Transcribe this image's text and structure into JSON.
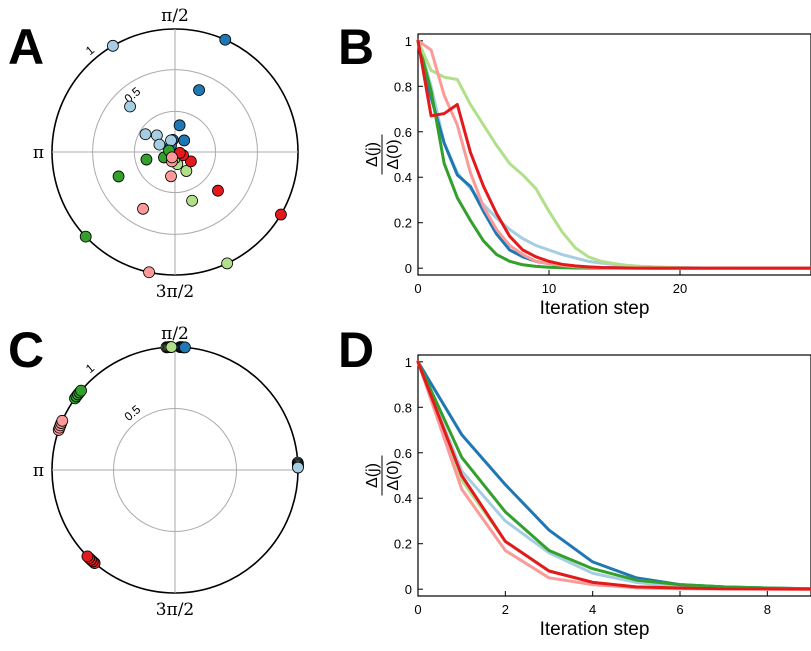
{
  "chart_data": [
    {
      "panel": "A",
      "type": "scatter",
      "subtype": "polar",
      "angle_labels": {
        "top": "π/2",
        "left": "π",
        "bottom": "3π/2"
      },
      "radial_labels": [
        "1",
        "0.5"
      ],
      "radial_circles": [
        0.33,
        0.67,
        1.0
      ],
      "series": [
        {
          "color": "#1f78b4",
          "points": [
            [
              1.15,
              1.0
            ],
            [
              1.2,
              0.54
            ],
            [
              1.4,
              0.22
            ],
            [
              1.75,
              0.1
            ],
            [
              2.15,
              0.06
            ],
            [
              0.9,
              0.12
            ]
          ]
        },
        {
          "color": "#a6cee3",
          "points": [
            [
              2.1,
              1.0
            ],
            [
              2.35,
              0.52
            ],
            [
              2.6,
              0.28
            ],
            [
              2.4,
              0.2
            ],
            [
              1.9,
              0.1
            ],
            [
              2.7,
              0.14
            ]
          ]
        },
        {
          "color": "#33a02c",
          "points": [
            [
              3.9,
              1.0
            ],
            [
              3.55,
              0.5
            ],
            [
              3.4,
              0.24
            ],
            [
              3.6,
              0.1
            ],
            [
              2.9,
              0.05
            ]
          ]
        },
        {
          "color": "#b2df8a",
          "points": [
            [
              5.15,
              1.0
            ],
            [
              5.05,
              0.42
            ],
            [
              5.25,
              0.18
            ],
            [
              4.9,
              0.1
            ],
            [
              4.7,
              0.05
            ]
          ]
        },
        {
          "color": "#e31a1c",
          "points": [
            [
              5.75,
              1.0
            ],
            [
              5.55,
              0.47
            ],
            [
              5.75,
              0.15
            ],
            [
              5.9,
              0.07
            ],
            [
              6.1,
              0.04
            ]
          ]
        },
        {
          "color": "#fb9a99",
          "points": [
            [
              4.5,
              1.0
            ],
            [
              4.2,
              0.53
            ],
            [
              4.55,
              0.2
            ],
            [
              4.4,
              0.08
            ],
            [
              4.2,
              0.05
            ]
          ]
        }
      ]
    },
    {
      "panel": "B",
      "type": "line",
      "xlabel": "Iteration step",
      "ylabel_num": "Δ(j)",
      "ylabel_den": "Δ(0)",
      "xlim": [
        0,
        30
      ],
      "ylim": [
        -0.03,
        1.03
      ],
      "xticks": [
        0,
        10,
        20
      ],
      "yticks": [
        0,
        0.2,
        0.4,
        0.6,
        0.8,
        1
      ],
      "ytick_labels": [
        "0",
        "0.2",
        "0.4",
        "0.6",
        "0.8",
        "1"
      ],
      "series": [
        {
          "color": "#a6cee3",
          "x": [
            0,
            1,
            2,
            3,
            4,
            5,
            6,
            7,
            8,
            9,
            10,
            11,
            12,
            13,
            14,
            15,
            16,
            17,
            18,
            19,
            20,
            21,
            22,
            23,
            24,
            25,
            26,
            27,
            28,
            29,
            30
          ],
          "y": [
            1,
            0.8,
            0.55,
            0.42,
            0.35,
            0.28,
            0.22,
            0.17,
            0.13,
            0.1,
            0.08,
            0.06,
            0.045,
            0.03,
            0.022,
            0.016,
            0.012,
            0.008,
            0.006,
            0.004,
            0.003,
            0.002,
            0.001,
            0.001,
            0.001,
            0,
            0,
            0,
            0,
            0,
            0
          ]
        },
        {
          "color": "#1f78b4",
          "x": [
            0,
            1,
            2,
            3,
            4,
            5,
            6,
            7,
            8,
            9,
            10,
            11,
            12,
            13,
            14,
            15,
            16,
            17,
            18,
            19,
            20,
            21,
            22,
            23,
            24,
            25,
            26,
            27,
            28,
            29,
            30
          ],
          "y": [
            1,
            0.75,
            0.55,
            0.41,
            0.36,
            0.25,
            0.15,
            0.08,
            0.05,
            0.03,
            0.02,
            0.012,
            0.007,
            0.004,
            0.003,
            0.002,
            0.001,
            0.001,
            0,
            0,
            0,
            0,
            0,
            0,
            0,
            0,
            0,
            0,
            0,
            0,
            0
          ]
        },
        {
          "color": "#33a02c",
          "x": [
            0,
            1,
            2,
            3,
            4,
            5,
            6,
            7,
            8,
            9,
            10,
            11,
            12,
            13,
            14,
            15,
            16,
            17,
            18,
            19,
            20,
            21,
            22,
            23,
            24,
            25,
            26,
            27,
            28,
            29,
            30
          ],
          "y": [
            1,
            0.78,
            0.46,
            0.31,
            0.21,
            0.12,
            0.06,
            0.03,
            0.015,
            0.008,
            0.004,
            0.002,
            0.001,
            0,
            0,
            0,
            0,
            0,
            0,
            0,
            0,
            0,
            0,
            0,
            0,
            0,
            0,
            0,
            0,
            0,
            0
          ]
        },
        {
          "color": "#b2df8a",
          "x": [
            0,
            1,
            2,
            3,
            4,
            5,
            6,
            7,
            8,
            9,
            10,
            11,
            12,
            13,
            14,
            15,
            16,
            17,
            18,
            19,
            20,
            21,
            22,
            23,
            24,
            25,
            26,
            27,
            28,
            29,
            30
          ],
          "y": [
            1,
            0.87,
            0.84,
            0.83,
            0.72,
            0.63,
            0.54,
            0.46,
            0.41,
            0.35,
            0.25,
            0.16,
            0.09,
            0.05,
            0.03,
            0.02,
            0.012,
            0.008,
            0.005,
            0.003,
            0.002,
            0.001,
            0.001,
            0,
            0,
            0,
            0,
            0,
            0,
            0,
            0
          ]
        },
        {
          "color": "#fb9a99",
          "x": [
            0,
            1,
            2,
            3,
            4,
            5,
            6,
            7,
            8,
            9,
            10,
            11,
            12,
            13,
            14,
            15,
            16,
            17,
            18,
            19,
            20,
            21,
            22,
            23,
            24,
            25,
            26,
            27,
            28,
            29,
            30
          ],
          "y": [
            1,
            0.96,
            0.76,
            0.63,
            0.42,
            0.27,
            0.17,
            0.1,
            0.06,
            0.03,
            0.02,
            0.012,
            0.007,
            0.004,
            0.002,
            0.001,
            0,
            0,
            0,
            0,
            0,
            0,
            0,
            0,
            0,
            0,
            0,
            0,
            0,
            0,
            0
          ]
        },
        {
          "color": "#e31a1c",
          "x": [
            0,
            1,
            2,
            3,
            4,
            5,
            6,
            7,
            8,
            9,
            10,
            11,
            12,
            13,
            14,
            15,
            16,
            17,
            18,
            19,
            20,
            21,
            22,
            23,
            24,
            25,
            26,
            27,
            28,
            29,
            30
          ],
          "y": [
            1,
            0.67,
            0.68,
            0.72,
            0.51,
            0.36,
            0.24,
            0.14,
            0.08,
            0.05,
            0.03,
            0.017,
            0.01,
            0.006,
            0.003,
            0.002,
            0.001,
            0,
            0,
            0,
            0,
            0,
            0,
            0,
            0,
            0,
            0,
            0,
            0,
            0,
            0
          ]
        }
      ]
    },
    {
      "panel": "C",
      "type": "scatter",
      "subtype": "polar",
      "angle_labels": {
        "top": "π/2",
        "left": "π",
        "bottom": "3π/2"
      },
      "radial_labels": [
        "1",
        "0.5"
      ],
      "radial_circles": [
        0.5,
        1.0
      ],
      "series": [
        {
          "color": "#1f78b4",
          "points": [
            [
              1.53,
              1.0
            ],
            [
              1.52,
              1.0
            ],
            [
              1.51,
              1.0
            ],
            [
              1.5,
              1.0
            ],
            [
              1.49,
              1.0
            ]
          ]
        },
        {
          "color": "#b2df8a",
          "points": [
            [
              1.64,
              1.0
            ],
            [
              1.63,
              1.0
            ],
            [
              1.62,
              1.0
            ],
            [
              1.61,
              1.0
            ],
            [
              1.6,
              1.0
            ]
          ]
        },
        {
          "color": "#a6cee3",
          "points": [
            [
              0.06,
              1.0
            ],
            [
              0.05,
              1.0
            ],
            [
              0.04,
              1.0
            ],
            [
              0.03,
              1.0
            ],
            [
              0.02,
              1.0
            ]
          ]
        },
        {
          "color": "#33a02c",
          "points": [
            [
              2.52,
              1.0
            ],
            [
              2.5,
              1.0
            ],
            [
              2.48,
              1.0
            ],
            [
              2.46,
              1.0
            ],
            [
              2.44,
              1.0
            ]
          ]
        },
        {
          "color": "#fb9a99",
          "points": [
            [
              2.81,
              1.0
            ],
            [
              2.79,
              1.0
            ],
            [
              2.77,
              1.0
            ],
            [
              2.75,
              1.0
            ],
            [
              2.73,
              1.0
            ]
          ]
        },
        {
          "color": "#e31a1c",
          "points": [
            [
              4.0,
              1.0
            ],
            [
              3.98,
              1.0
            ],
            [
              3.96,
              1.0
            ],
            [
              3.94,
              1.0
            ],
            [
              3.92,
              1.0
            ]
          ]
        }
      ]
    },
    {
      "panel": "D",
      "type": "line",
      "xlabel": "Iteration step",
      "ylabel_num": "Δ(j)",
      "ylabel_den": "Δ(0)",
      "xlim": [
        0,
        9
      ],
      "ylim": [
        -0.03,
        1.03
      ],
      "xticks": [
        0,
        2,
        4,
        6,
        8
      ],
      "yticks": [
        0,
        0.2,
        0.4,
        0.6,
        0.8,
        1
      ],
      "ytick_labels": [
        "0",
        "0.2",
        "0.4",
        "0.6",
        "0.8",
        "1"
      ],
      "series": [
        {
          "color": "#1f78b4",
          "x": [
            0,
            1,
            2,
            3,
            4,
            5,
            6,
            7,
            8,
            9
          ],
          "y": [
            1,
            0.68,
            0.46,
            0.26,
            0.12,
            0.05,
            0.02,
            0.01,
            0.005,
            0.002
          ]
        },
        {
          "color": "#a6cee3",
          "x": [
            0,
            1,
            2,
            3,
            4,
            5,
            6,
            7,
            8,
            9
          ],
          "y": [
            1,
            0.52,
            0.3,
            0.16,
            0.07,
            0.03,
            0.01,
            0.005,
            0.002,
            0.001
          ]
        },
        {
          "color": "#33a02c",
          "x": [
            0,
            1,
            2,
            3,
            4,
            5,
            6,
            7,
            8,
            9
          ],
          "y": [
            1,
            0.58,
            0.34,
            0.17,
            0.09,
            0.04,
            0.02,
            0.01,
            0.005,
            0.002
          ]
        },
        {
          "color": "#b2df8a",
          "x": [
            0,
            1,
            2,
            3,
            4,
            5,
            6,
            7,
            8,
            9
          ],
          "y": [
            1,
            0.48,
            0.21,
            0.08,
            0.03,
            0.01,
            0.005,
            0.002,
            0.001,
            0
          ]
        },
        {
          "color": "#fb9a99",
          "x": [
            0,
            1,
            2,
            3,
            4,
            5,
            6,
            7,
            8,
            9
          ],
          "y": [
            1,
            0.44,
            0.17,
            0.05,
            0.02,
            0.006,
            0.002,
            0.001,
            0,
            0
          ]
        },
        {
          "color": "#e31a1c",
          "x": [
            0,
            1,
            2,
            3,
            4,
            5,
            6,
            7,
            8,
            9
          ],
          "y": [
            1,
            0.5,
            0.21,
            0.08,
            0.03,
            0.01,
            0.005,
            0.002,
            0.001,
            0
          ]
        }
      ]
    }
  ],
  "panel_letters": [
    "A",
    "B",
    "C",
    "D"
  ]
}
